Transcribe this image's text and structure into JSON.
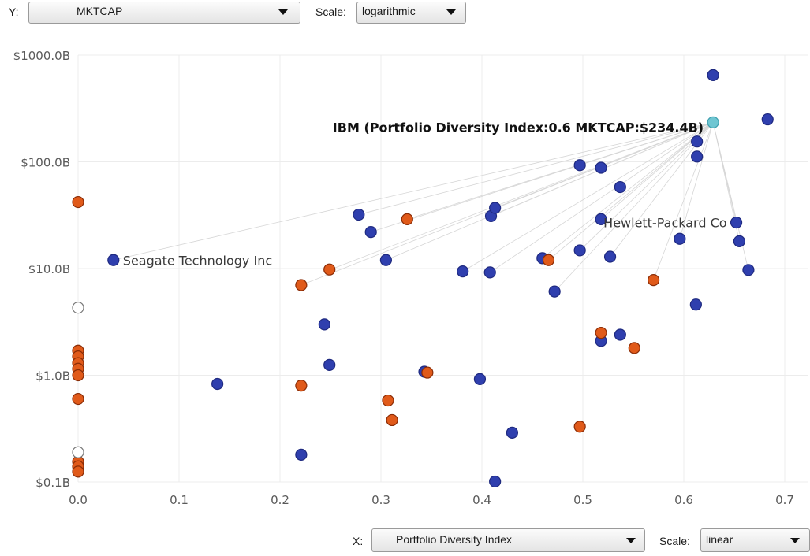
{
  "y_control": {
    "label": "Y:",
    "value": "MKTCAP",
    "scale_label": "Scale:",
    "scale_value": "logarithmic"
  },
  "x_control": {
    "label": "X:",
    "value": "Portfolio Diversity Index",
    "scale_label": "Scale:",
    "scale_value": "linear"
  },
  "colors": {
    "blue": "#2f3fae",
    "orange": "#e05a1a",
    "highlight": "#6fc6d2",
    "hollow": "#ffffff",
    "grid": "#ececec"
  },
  "chart_data": {
    "type": "scatter",
    "xlabel": "",
    "ylabel": "",
    "x_scale": "linear",
    "y_scale": "log",
    "xlim": [
      0.0,
      0.7
    ],
    "ylim": [
      0.1,
      1000
    ],
    "x_ticks": [
      "0.0",
      "0.1",
      "0.2",
      "0.3",
      "0.4",
      "0.5",
      "0.6",
      "0.7"
    ],
    "y_ticks": [
      {
        "value": 1000,
        "label": "$1000.0B"
      },
      {
        "value": 100,
        "label": "$100.0B"
      },
      {
        "value": 10,
        "label": "$10.0B"
      },
      {
        "value": 1,
        "label": "$1.0B"
      },
      {
        "value": 0.1,
        "label": "$0.1B"
      }
    ],
    "grid": true,
    "highlight": {
      "x": 0.629,
      "y": 234.4,
      "tooltip": "IBM (Portfolio Diversity Index:0.6 MKTCAP:$234.4B)"
    },
    "annotations": [
      {
        "text": "Seagate Technology Inc",
        "x": 0.035,
        "y": 12
      },
      {
        "text": "Hewlett-Packard Co",
        "x": 0.652,
        "y": 27
      }
    ],
    "links_from_highlight": [
      [
        0.035,
        12
      ],
      [
        0.221,
        7
      ],
      [
        0.249,
        9.7
      ],
      [
        0.278,
        32
      ],
      [
        0.29,
        22
      ],
      [
        0.305,
        12
      ],
      [
        0.326,
        29
      ],
      [
        0.381,
        9.4
      ],
      [
        0.408,
        9.2
      ],
      [
        0.409,
        31
      ],
      [
        0.413,
        37
      ],
      [
        0.46,
        12.5
      ],
      [
        0.466,
        12
      ],
      [
        0.472,
        6.1
      ],
      [
        0.497,
        14.8
      ],
      [
        0.518,
        29
      ],
      [
        0.527,
        12.9
      ],
      [
        0.57,
        7.8
      ],
      [
        0.596,
        19
      ],
      [
        0.652,
        27
      ],
      [
        0.655,
        18
      ],
      [
        0.664,
        9.7
      ]
    ],
    "series": [
      {
        "color": "blue",
        "points": [
          [
            0.035,
            12
          ],
          [
            0.138,
            0.83
          ],
          [
            0.221,
            0.18
          ],
          [
            0.244,
            3.0
          ],
          [
            0.249,
            1.25
          ],
          [
            0.278,
            32
          ],
          [
            0.29,
            22
          ],
          [
            0.305,
            12
          ],
          [
            0.343,
            1.08
          ],
          [
            0.381,
            9.4
          ],
          [
            0.398,
            0.92
          ],
          [
            0.408,
            9.2
          ],
          [
            0.409,
            31
          ],
          [
            0.413,
            37
          ],
          [
            0.413,
            0.101
          ],
          [
            0.43,
            0.29
          ],
          [
            0.46,
            12.5
          ],
          [
            0.472,
            6.1
          ],
          [
            0.497,
            93
          ],
          [
            0.497,
            14.8
          ],
          [
            0.518,
            2.1
          ],
          [
            0.518,
            88
          ],
          [
            0.518,
            29
          ],
          [
            0.527,
            12.9
          ],
          [
            0.537,
            58
          ],
          [
            0.537,
            2.4
          ],
          [
            0.596,
            19
          ],
          [
            0.612,
            4.6
          ],
          [
            0.613,
            155
          ],
          [
            0.613,
            112
          ],
          [
            0.629,
            650
          ],
          [
            0.652,
            27
          ],
          [
            0.655,
            18
          ],
          [
            0.664,
            9.7
          ],
          [
            0.683,
            250
          ]
        ]
      },
      {
        "color": "orange",
        "points": [
          [
            0.0,
            42
          ],
          [
            0.0,
            1.7
          ],
          [
            0.0,
            1.5
          ],
          [
            0.0,
            1.3
          ],
          [
            0.0,
            1.15
          ],
          [
            0.0,
            1.0
          ],
          [
            0.0,
            0.6
          ],
          [
            0.0,
            0.155
          ],
          [
            0.0,
            0.14
          ],
          [
            0.0,
            0.125
          ],
          [
            0.221,
            7.0
          ],
          [
            0.221,
            0.8
          ],
          [
            0.249,
            9.8
          ],
          [
            0.307,
            0.58
          ],
          [
            0.311,
            0.38
          ],
          [
            0.326,
            29
          ],
          [
            0.346,
            1.06
          ],
          [
            0.466,
            12
          ],
          [
            0.497,
            0.33
          ],
          [
            0.518,
            2.5
          ],
          [
            0.551,
            1.8
          ],
          [
            0.57,
            7.8
          ]
        ]
      },
      {
        "color": "hollow",
        "points": [
          [
            0.0,
            4.3
          ],
          [
            0.0,
            0.19
          ]
        ]
      },
      {
        "color": "highlight",
        "points": [
          [
            0.629,
            234.4
          ]
        ]
      }
    ]
  }
}
